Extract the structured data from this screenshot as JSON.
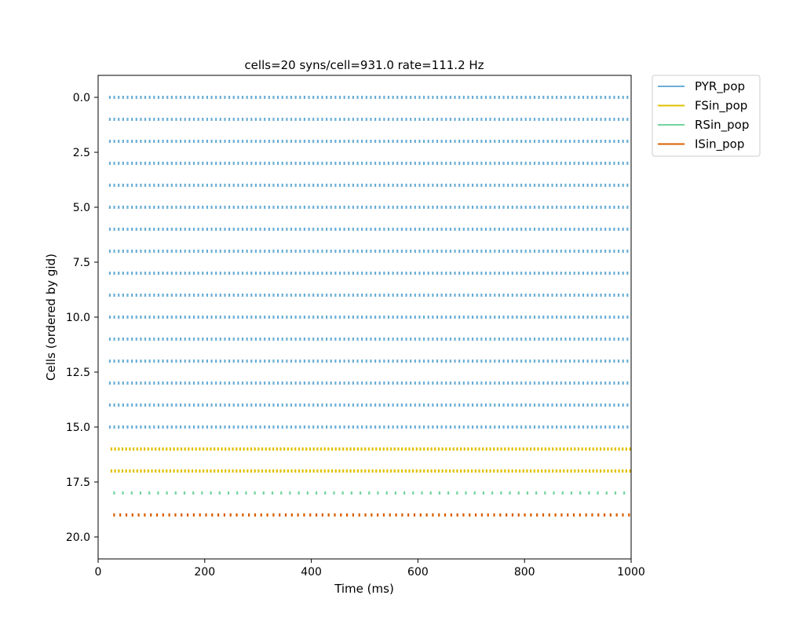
{
  "chart_data": {
    "type": "raster",
    "title": "cells=20   syns/cell=931.0   rate=111.2 Hz",
    "xlabel": "Time (ms)",
    "ylabel": "Cells (ordered by gid)",
    "xlim": [
      0,
      1000
    ],
    "ylim": [
      21,
      -1
    ],
    "y_inverted": true,
    "xticks": [
      "0",
      "200",
      "400",
      "600",
      "800",
      "1000"
    ],
    "yticks": [
      "0.0",
      "2.5",
      "5.0",
      "7.5",
      "10.0",
      "12.5",
      "15.0",
      "17.5",
      "20.0"
    ],
    "legend": {
      "position": "outside-top-right"
    },
    "series": [
      {
        "name": "PYR_pop",
        "color": "#6baed6",
        "cells": [
          0,
          1,
          2,
          3,
          4,
          5,
          6,
          7,
          8,
          9,
          10,
          11,
          12,
          13,
          14,
          15
        ],
        "first_spike_ms": 22,
        "isi_ms": 8.3
      },
      {
        "name": "FSin_pop",
        "color": "#e0c000",
        "cells": [
          16,
          17
        ],
        "first_spike_ms": 25,
        "isi_ms": 6.9
      },
      {
        "name": "RSin_pop",
        "color": "#74d4a0",
        "cells": [
          18
        ],
        "first_spike_ms": 30,
        "isi_ms": 16.5
      },
      {
        "name": "ISin_pop",
        "color": "#d95f02",
        "cells": [
          19
        ],
        "first_spike_ms": 30,
        "isi_ms": 11.5
      }
    ]
  }
}
